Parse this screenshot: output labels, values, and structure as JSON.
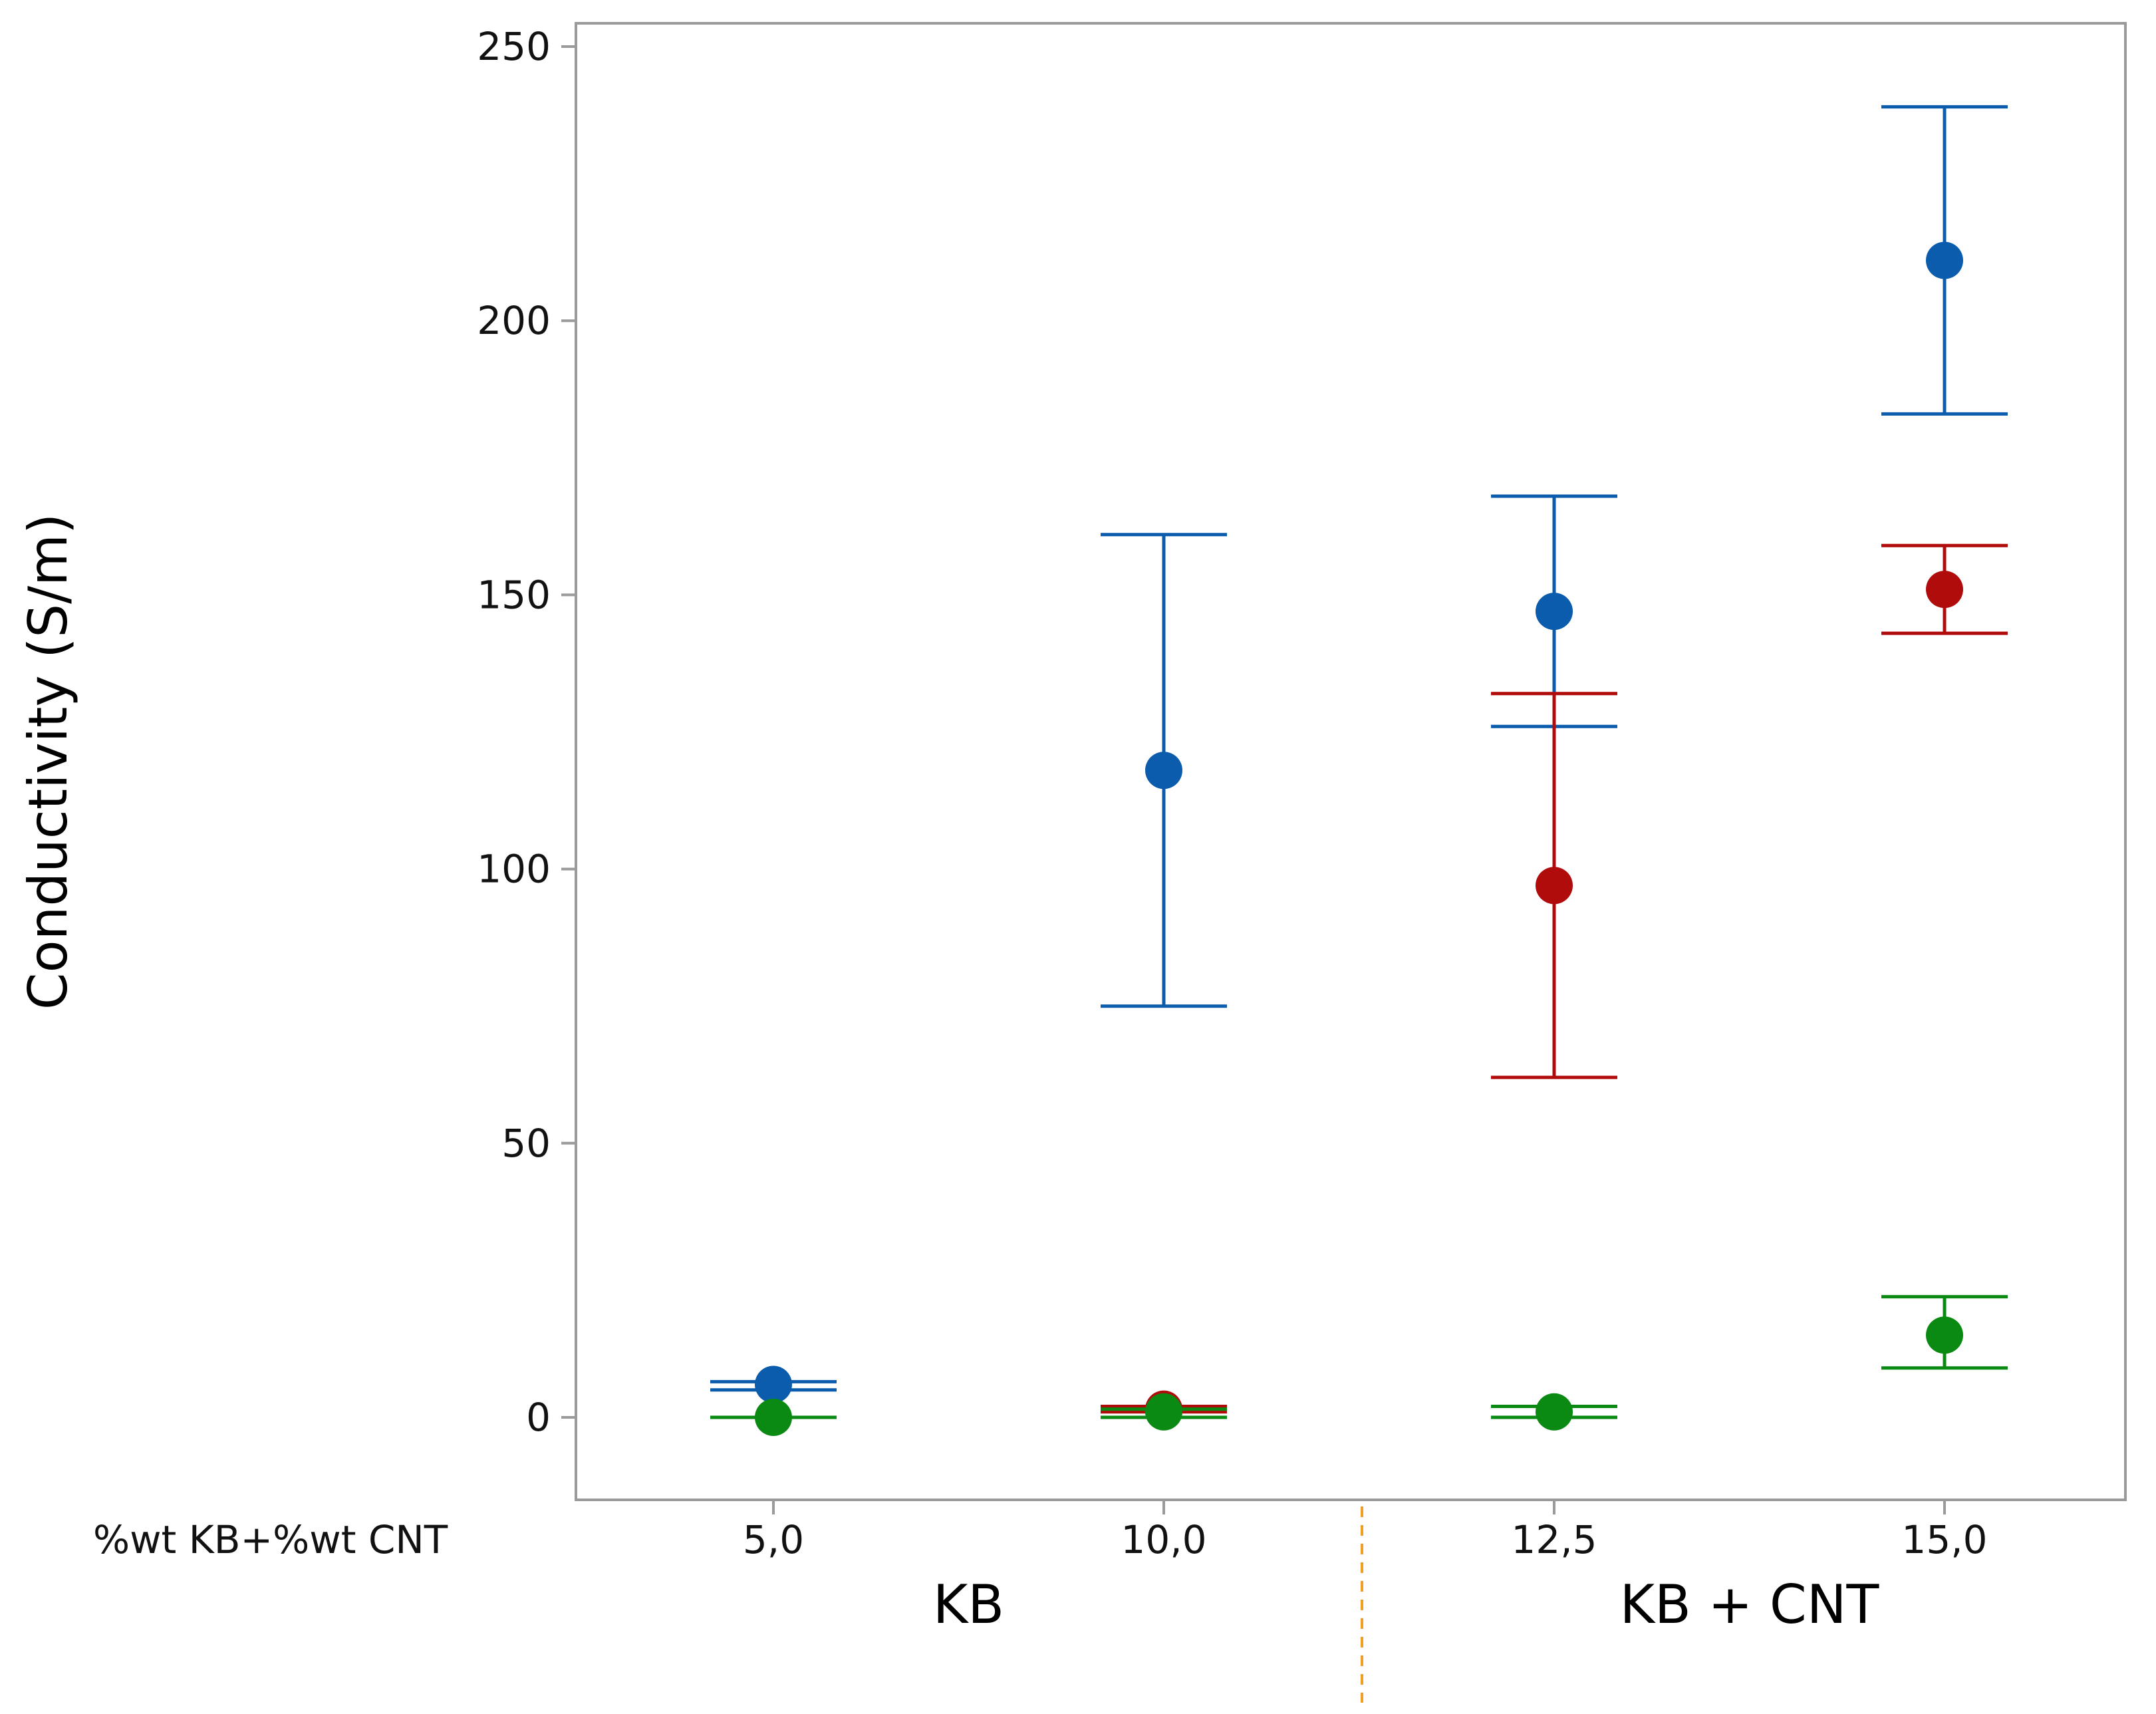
{
  "chart_data": {
    "type": "scatter",
    "title": "",
    "ylabel": "Conductivity (S/m)",
    "x_row_label": "%wt KB+%wt CNT",
    "categories": [
      "5,0",
      "10,0",
      "12,5",
      "15,0"
    ],
    "groups": [
      {
        "label": "KB",
        "categories": [
          "5,0",
          "10,0"
        ]
      },
      {
        "label": "KB + CNT",
        "categories": [
          "12,5",
          "15,0"
        ]
      }
    ],
    "ylim": [
      -15,
      255
    ],
    "yticks": [
      0,
      50,
      100,
      150,
      200,
      250
    ],
    "series": [
      {
        "name": "blue",
        "color": "#0b5cad",
        "points": [
          {
            "category": "5,0",
            "value": 6,
            "low": 5,
            "high": 6.5
          },
          {
            "category": "10,0",
            "value": 118,
            "low": 75,
            "high": 161
          },
          {
            "category": "12,5",
            "value": 147,
            "low": 126,
            "high": 168
          },
          {
            "category": "15,0",
            "value": 211,
            "low": 183,
            "high": 239
          }
        ]
      },
      {
        "name": "red",
        "color": "#b00c0c",
        "points": [
          {
            "category": "10,0",
            "value": 1.5,
            "low": 1,
            "high": 2
          },
          {
            "category": "12,5",
            "value": 97,
            "low": 62,
            "high": 132
          },
          {
            "category": "15,0",
            "value": 151,
            "low": 143,
            "high": 159
          }
        ]
      },
      {
        "name": "green",
        "color": "#0a8a12",
        "points": [
          {
            "category": "5,0",
            "value": 0,
            "low": 0,
            "high": 0
          },
          {
            "category": "10,0",
            "value": 1,
            "low": 0,
            "high": 1.5
          },
          {
            "category": "12,5",
            "value": 1,
            "low": 0,
            "high": 2
          },
          {
            "category": "15,0",
            "value": 15,
            "low": 9,
            "high": 22
          }
        ]
      }
    ]
  }
}
